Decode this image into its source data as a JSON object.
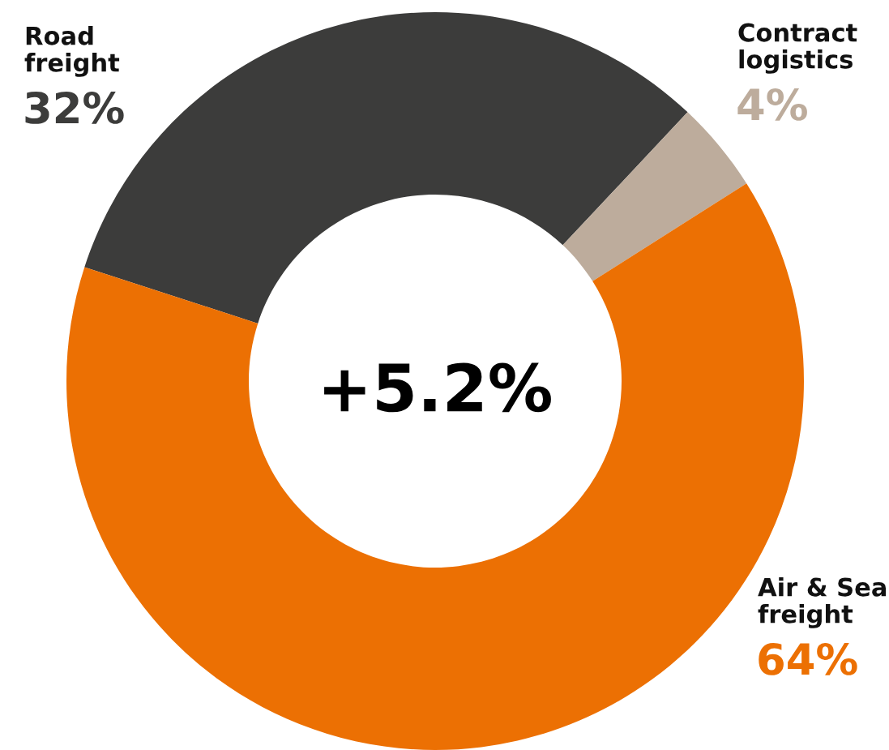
{
  "chart_data": {
    "type": "donut",
    "categories": [
      "Road\nfreight",
      "Contract\nlogistics",
      "Air & Sea\nfreight"
    ],
    "values": [
      32,
      4,
      64
    ],
    "value_labels": [
      "32%",
      "4%",
      "64%"
    ],
    "colors": [
      "#3c3c3b",
      "#bdac9c",
      "#ec7003"
    ],
    "annotations": [
      "+5.2%"
    ],
    "legend": false
  }
}
